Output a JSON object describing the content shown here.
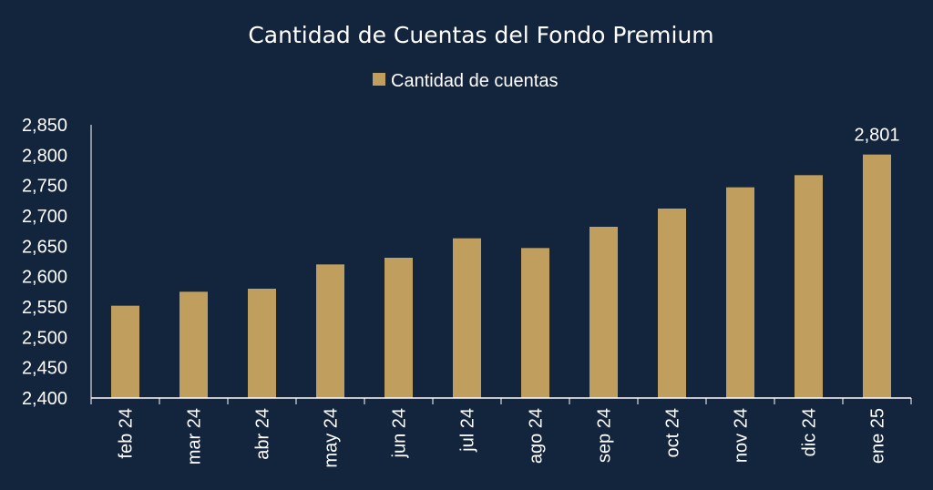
{
  "chart_data": {
    "type": "bar",
    "title": "Cantidad de Cuentas del Fondo Premium",
    "legend": {
      "entries": [
        "Cantidad de cuentas"
      ],
      "position": "top"
    },
    "categories": [
      "feb 24",
      "mar 24",
      "abr 24",
      "may 24",
      "jun 24",
      "jul 24",
      "ago 24",
      "sep 24",
      "oct 24",
      "nov 24",
      "dic 24",
      "ene 25"
    ],
    "series": [
      {
        "name": "Cantidad de cuentas",
        "values": [
          2552,
          2575,
          2580,
          2620,
          2631,
          2663,
          2647,
          2682,
          2712,
          2747,
          2767,
          2801
        ]
      }
    ],
    "data_labels": [
      {
        "category": "ene 25",
        "text": "2,801"
      }
    ],
    "ylim": [
      2400,
      2850
    ],
    "yticks": [
      "2,400",
      "2,450",
      "2,500",
      "2,550",
      "2,600",
      "2,650",
      "2,700",
      "2,750",
      "2,800",
      "2,850"
    ],
    "ytick_values": [
      2400,
      2450,
      2500,
      2550,
      2600,
      2650,
      2700,
      2750,
      2800,
      2850
    ],
    "xlabel": "",
    "ylabel": "",
    "grid": false,
    "colors": {
      "background": "#13243d",
      "bar": "#c09e5e",
      "text": "#ffffff",
      "axis": "#ffffff"
    }
  }
}
